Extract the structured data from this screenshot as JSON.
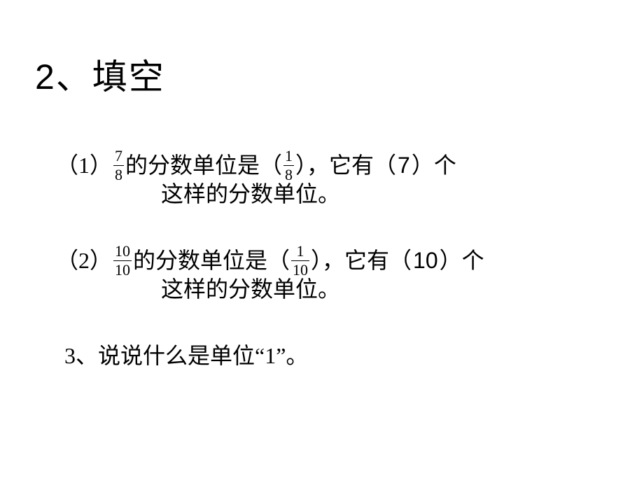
{
  "heading": "2、填空",
  "q1": {
    "label": "（1）",
    "frac_num": "7",
    "frac_den": "8",
    "seg1": " 的分数单位是（ ",
    "ans_frac_num": "1",
    "ans_frac_den": "8",
    "seg2": " ），它有（ ",
    "ans_count": "7",
    "seg3": "）个",
    "line2": "这样的分数单位。"
  },
  "q2": {
    "label": "（2）",
    "frac_num": "10",
    "frac_den": "10",
    "seg1": " 的分数单位是（",
    "ans_frac_num": "1",
    "ans_frac_den": "10",
    "seg2": "），它有（",
    "ans_count": "10",
    "seg3": "）个",
    "line2": "这样的分数单位。"
  },
  "q3": {
    "text": "3、说说什么是单位“1”。"
  }
}
